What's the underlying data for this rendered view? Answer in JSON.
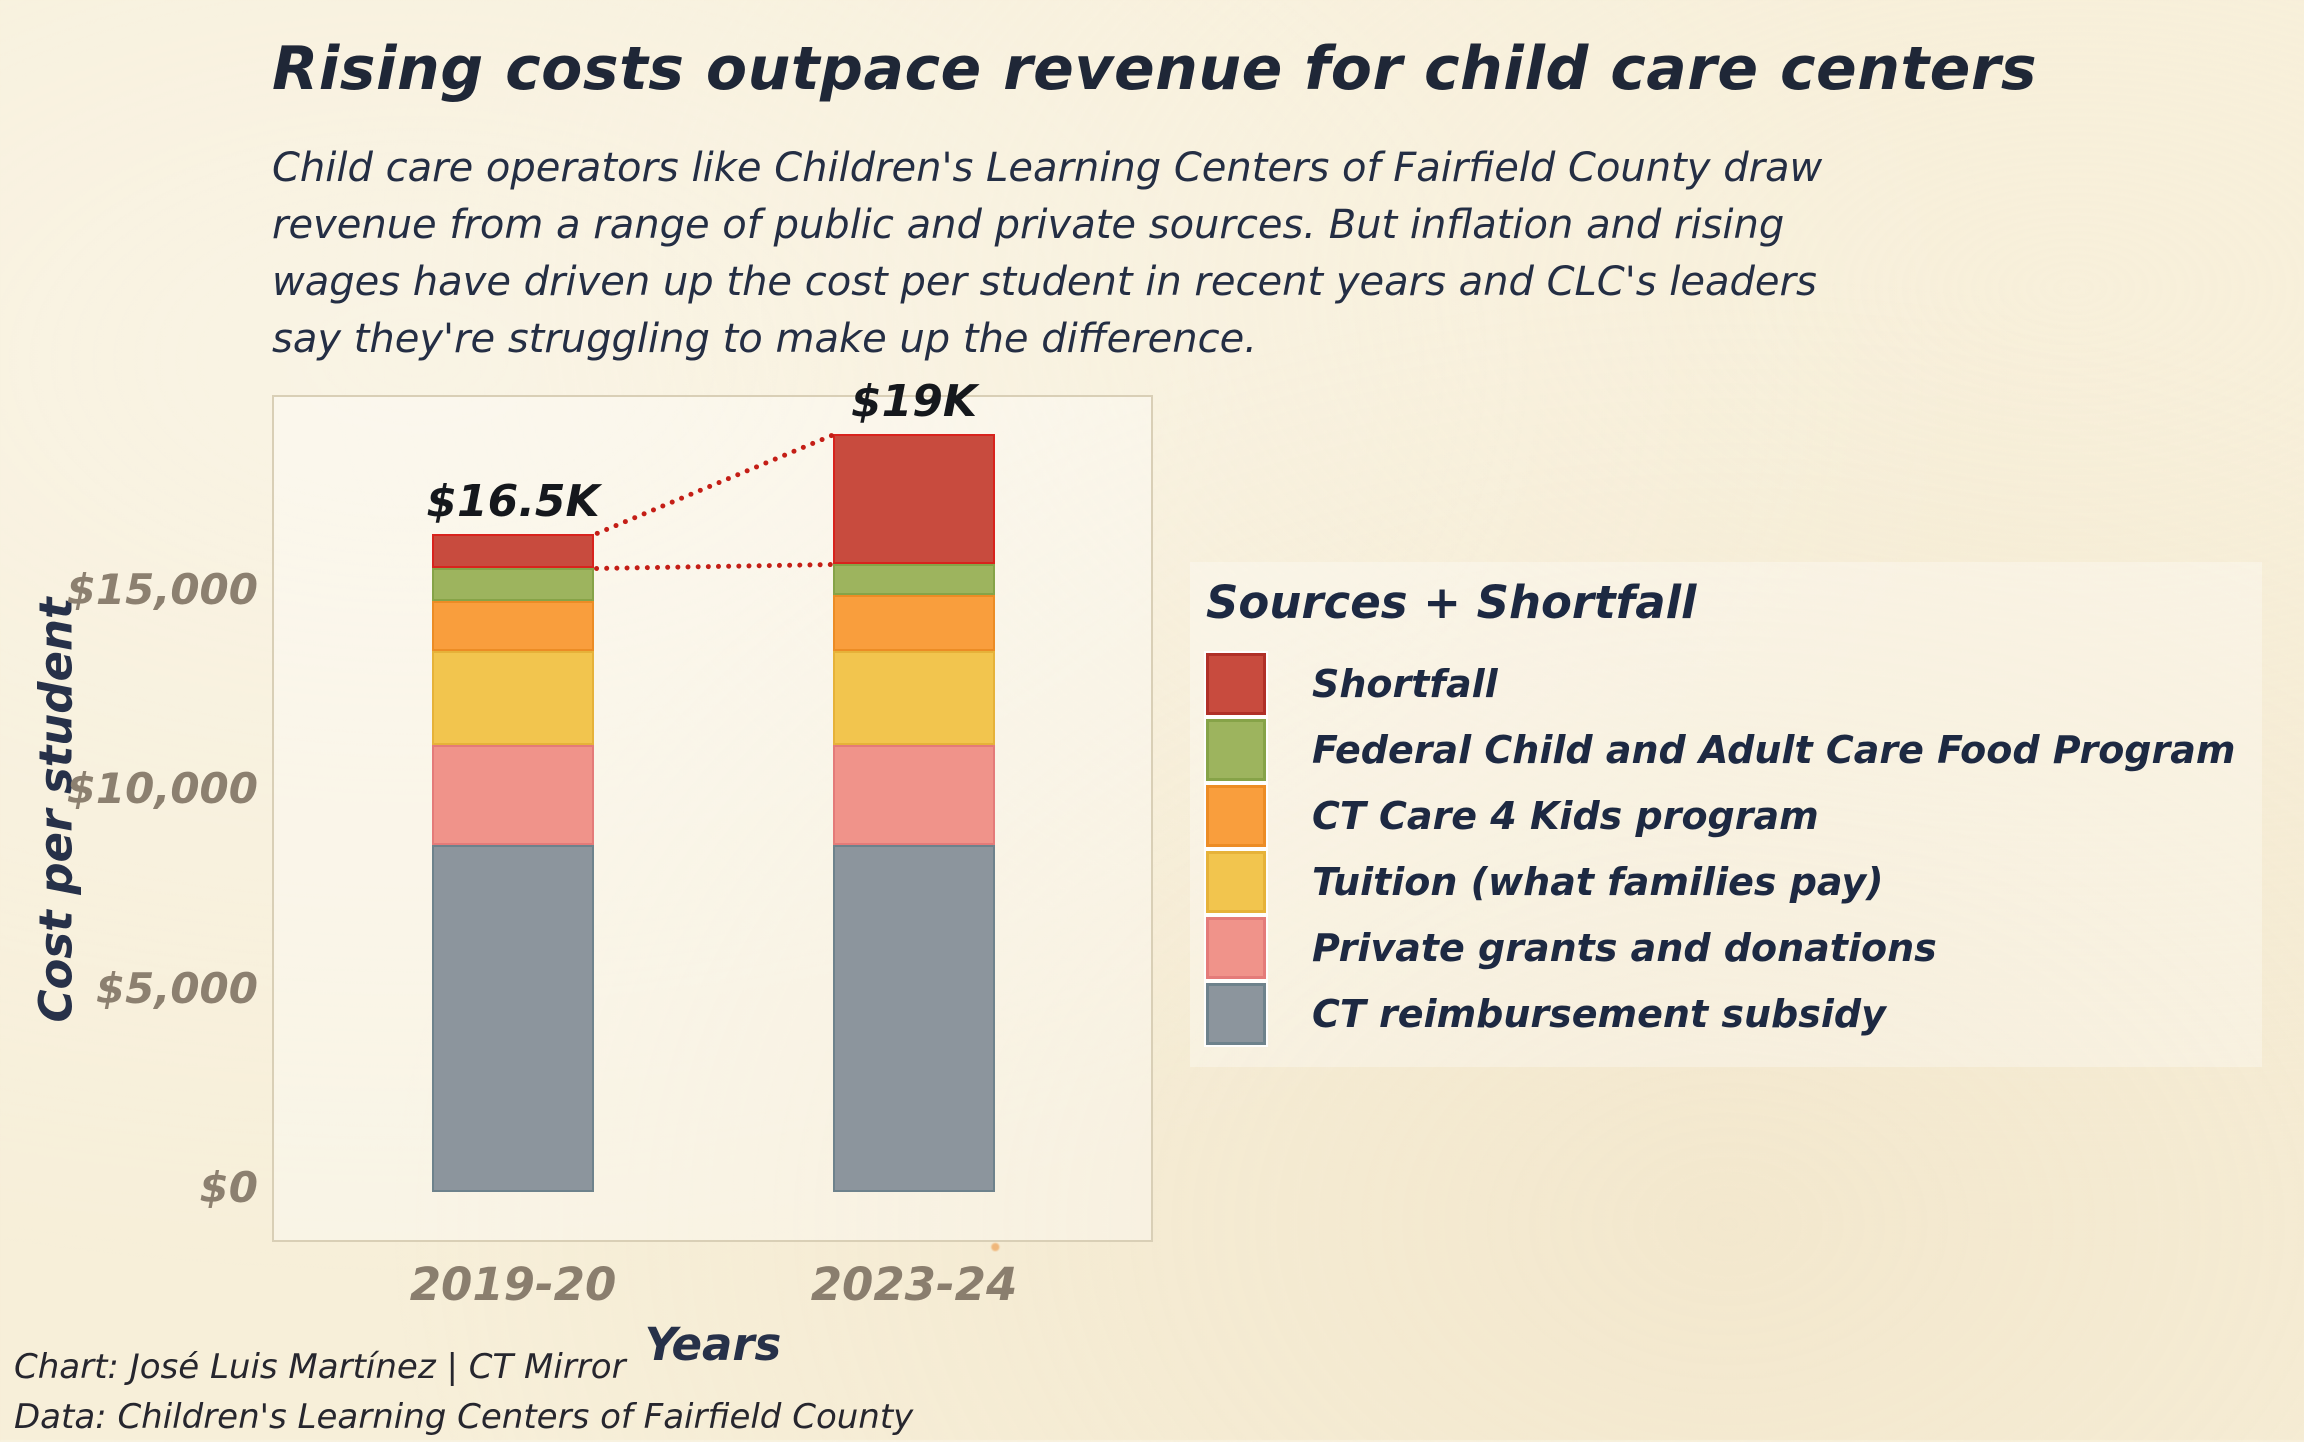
{
  "header": {
    "title": "Rising costs outpace revenue for child care centers",
    "subtitle_lines": [
      "Child care operators like Children's Learning Centers of Fairfield County draw",
      "revenue from a range of public and private sources. But inflation and rising",
      "wages have driven up the cost per student in recent years and CLC's leaders",
      "say they're struggling to make up the difference."
    ]
  },
  "axes": {
    "y_title": "Cost per student",
    "x_title": "Years",
    "y_ticks": [
      {
        "label": "$15,000",
        "value": 15000
      },
      {
        "label": "$10,000",
        "value": 10000
      },
      {
        "label": "$5,000",
        "value": 5000
      },
      {
        "label": "$0",
        "value": 0
      }
    ]
  },
  "legend": {
    "title": "Sources + Shortfall",
    "items": [
      {
        "label": "Shortfall",
        "color": "#c84b3e",
        "border": "#b03028"
      },
      {
        "label": "Federal Child and Adult Care Food Program",
        "color": "#9db45e",
        "border": "#86a348"
      },
      {
        "label": "CT Care 4 Kids program",
        "color": "#f99e3d",
        "border": "#ec8c25"
      },
      {
        "label": "Tuition (what families pay)",
        "color": "#f2c54e",
        "border": "#e6b239"
      },
      {
        "label": "Private grants and donations",
        "color": "#f0938a",
        "border": "#e47b79"
      },
      {
        "label": "CT reimbursement subsidy",
        "color": "#8c959d",
        "border": "#6e828c"
      }
    ]
  },
  "annotations": {
    "bar_totals": [
      "$16.5K",
      "$19K"
    ],
    "connector_color": "#c41e16"
  },
  "credits": {
    "chart_line": "Chart: José Luis Martínez | CT Mirror",
    "data_line": "Data: Children's Learning Centers of Fairfield County"
  },
  "colors": {
    "background": "#f7efd9",
    "title_text": "#1f2737",
    "tick_text": "#8c8070",
    "frame_border": "#d9cfb6"
  },
  "chart_data": {
    "type": "bar",
    "stacked": true,
    "title": "Rising costs outpace revenue for child care centers",
    "xlabel": "Years",
    "ylabel": "Cost per student",
    "ylim": [
      0,
      20000
    ],
    "grid": false,
    "legend_position": "right",
    "categories": [
      "2019-20",
      "2023-24"
    ],
    "series": [
      {
        "name": "CT reimbursement subsidy",
        "color": "#8c959d",
        "border": "#6e828c",
        "values": [
          8700,
          8700
        ]
      },
      {
        "name": "Private grants and donations",
        "color": "#f0938a",
        "border": "#e47b79",
        "values": [
          2500,
          2500
        ]
      },
      {
        "name": "Tuition (what families pay)",
        "color": "#f2c54e",
        "border": "#e6b239",
        "values": [
          2350,
          2350
        ]
      },
      {
        "name": "CT Care 4 Kids program",
        "color": "#f99e3d",
        "border": "#ec8c25",
        "values": [
          1250,
          1400
        ]
      },
      {
        "name": "Federal Child and Adult Care Food Program",
        "color": "#9db45e",
        "border": "#86a348",
        "values": [
          850,
          800
        ]
      },
      {
        "name": "Shortfall",
        "color": "#c84b3e",
        "border": "#d8231d",
        "values": [
          850,
          3250
        ]
      }
    ],
    "totals": [
      16500,
      19000
    ],
    "totals_labels": [
      "$16.5K",
      "$19K"
    ],
    "connectors": "dotted lines join top of 2019-20 bar to top of 2023-24 bar, and top of revenue sources (bottom of Shortfall) across both bars"
  }
}
